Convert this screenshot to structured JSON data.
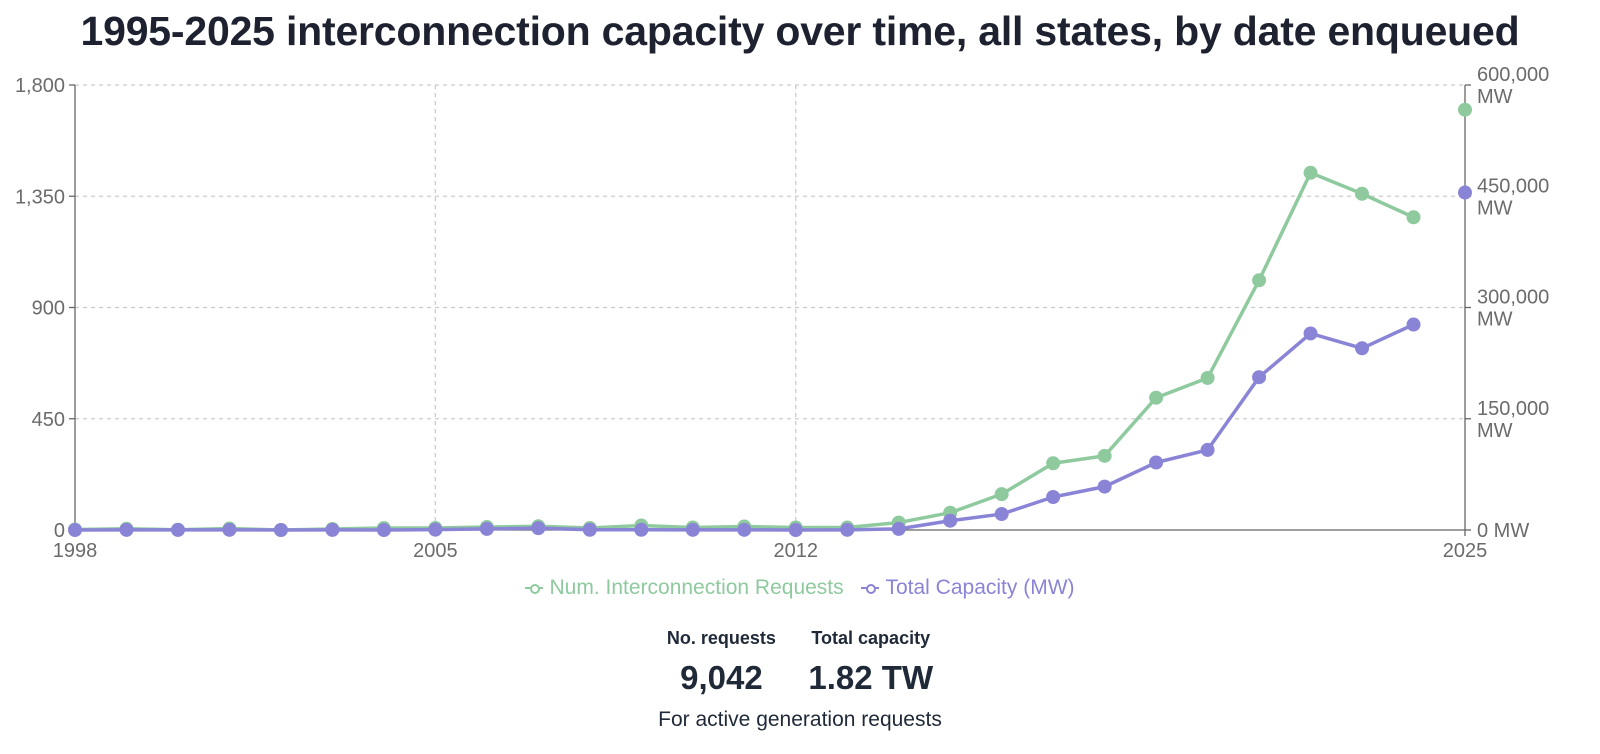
{
  "chart_data": {
    "type": "line",
    "title": "1995-2025 interconnection capacity over time, all states, by date enqueued",
    "x": [
      1998,
      1999,
      2000,
      2001,
      2002,
      2003,
      2004,
      2005,
      2006,
      2007,
      2008,
      2009,
      2010,
      2011,
      2012,
      2013,
      2014,
      2015,
      2016,
      2017,
      2018,
      2019,
      2020,
      2021,
      2022,
      2023,
      2024,
      2025
    ],
    "xlim": [
      1998,
      2025
    ],
    "x_ticks": [
      "1998",
      "2005",
      "2012",
      "2025"
    ],
    "series": [
      {
        "name": "Num. Interconnection Requests",
        "axis": "left",
        "color": "#8fca9f",
        "values": [
          2,
          5,
          1,
          6,
          0,
          4,
          8,
          8,
          12,
          15,
          8,
          18,
          10,
          14,
          10,
          10,
          30,
          70,
          145,
          270,
          300,
          535,
          615,
          1010,
          1445,
          1360,
          1265,
          1700
        ]
      },
      {
        "name": "Total Capacity (MW)",
        "axis": "right",
        "color": "#8a84d6",
        "values": [
          0,
          200,
          100,
          200,
          0,
          100,
          0,
          500,
          1500,
          2500,
          300,
          300,
          200,
          200,
          0,
          200,
          1500,
          12500,
          21500,
          44500,
          58500,
          91000,
          108000,
          206000,
          265000,
          245000,
          277000,
          455000
        ]
      }
    ],
    "y_left": {
      "ylim": [
        0,
        1800
      ],
      "ticks": [
        "0",
        "450",
        "900",
        "1,350",
        "1,800"
      ]
    },
    "y_right": {
      "ylim": [
        0,
        600000
      ],
      "ticks": [
        [
          "0 MW"
        ],
        [
          "150,000",
          "MW"
        ],
        [
          "300,000",
          "MW"
        ],
        [
          "450,000",
          "MW"
        ],
        [
          "600,000",
          "MW"
        ]
      ]
    },
    "grid": true,
    "legend_position": "bottom"
  },
  "stats": [
    {
      "label": "No. requests",
      "value": "9,042"
    },
    {
      "label": "Total capacity",
      "value": "1.82 TW"
    }
  ],
  "footnote": "For active generation requests"
}
